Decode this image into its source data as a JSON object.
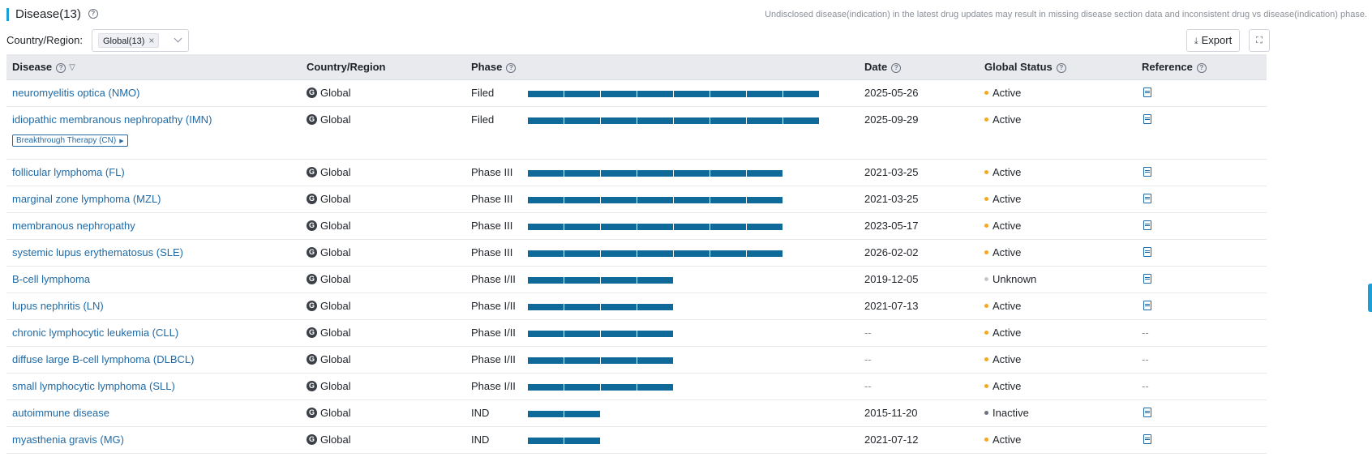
{
  "header": {
    "title": "Disease(13)",
    "notice": "Undisclosed disease(indication) in the latest drug updates may result in missing disease section data and inconsistent drug vs disease(indication) phase."
  },
  "filter": {
    "label": "Country/Region:",
    "selected_tag": "Global(13)",
    "tag_close": "×"
  },
  "toolbar": {
    "export_label": "Export"
  },
  "columns": {
    "disease": "Disease",
    "country": "Country/Region",
    "phase": "Phase",
    "date": "Date",
    "status": "Global Status",
    "reference": "Reference"
  },
  "colors": {
    "accent": "#1a9fd6",
    "link": "#1f6aa6",
    "bar": "#0f6a99",
    "active": "#f5a623",
    "unknown": "#c4c8ce",
    "inactive": "#6b7280"
  },
  "phase_scale": [
    "IND",
    "Phase I",
    "Phase I/II",
    "Phase II",
    "Phase II/III",
    "Phase III",
    "Filed",
    "Approved"
  ],
  "rows": [
    {
      "disease": "neuromyelitis optica (NMO)",
      "country": "Global",
      "phase": "Filed",
      "phase_level": 8,
      "date": "2025-05-26",
      "status": "Active",
      "status_color": "#f5a623",
      "reference": "doc-icon"
    },
    {
      "disease": "idiopathic membranous nephropathy (IMN)",
      "country": "Global",
      "phase": "Filed",
      "phase_level": 8,
      "date": "2025-09-29",
      "status": "Active",
      "status_color": "#f5a623",
      "reference": "doc-icon",
      "badge": "Breakthrough Therapy (CN)"
    },
    {
      "disease": "follicular lymphoma (FL)",
      "country": "Global",
      "phase": "Phase III",
      "phase_level": 7,
      "date": "2021-03-25",
      "status": "Active",
      "status_color": "#f5a623",
      "reference": "doc-icon"
    },
    {
      "disease": "marginal zone lymphoma (MZL)",
      "country": "Global",
      "phase": "Phase III",
      "phase_level": 7,
      "date": "2021-03-25",
      "status": "Active",
      "status_color": "#f5a623",
      "reference": "doc-icon"
    },
    {
      "disease": "membranous nephropathy",
      "country": "Global",
      "phase": "Phase III",
      "phase_level": 7,
      "date": "2023-05-17",
      "status": "Active",
      "status_color": "#f5a623",
      "reference": "doc-icon"
    },
    {
      "disease": "systemic lupus erythematosus (SLE)",
      "country": "Global",
      "phase": "Phase III",
      "phase_level": 7,
      "date": "2026-02-02",
      "status": "Active",
      "status_color": "#f5a623",
      "reference": "doc-icon"
    },
    {
      "disease": "B-cell lymphoma",
      "country": "Global",
      "phase": "Phase I/II",
      "phase_level": 4,
      "date": "2019-12-05",
      "status": "Unknown",
      "status_color": "#c4c8ce",
      "reference": "doc-icon"
    },
    {
      "disease": "lupus nephritis (LN)",
      "country": "Global",
      "phase": "Phase I/II",
      "phase_level": 4,
      "date": "2021-07-13",
      "status": "Active",
      "status_color": "#f5a623",
      "reference": "doc-icon"
    },
    {
      "disease": "chronic lymphocytic leukemia (CLL)",
      "country": "Global",
      "phase": "Phase I/II",
      "phase_level": 4,
      "date": "--",
      "status": "Active",
      "status_color": "#f5a623",
      "reference": "--"
    },
    {
      "disease": "diffuse large B-cell lymphoma (DLBCL)",
      "country": "Global",
      "phase": "Phase I/II",
      "phase_level": 4,
      "date": "--",
      "status": "Active",
      "status_color": "#f5a623",
      "reference": "--"
    },
    {
      "disease": "small lymphocytic lymphoma (SLL)",
      "country": "Global",
      "phase": "Phase I/II",
      "phase_level": 4,
      "date": "--",
      "status": "Active",
      "status_color": "#f5a623",
      "reference": "--"
    },
    {
      "disease": "autoimmune disease",
      "country": "Global",
      "phase": "IND",
      "phase_level": 2,
      "date": "2015-11-20",
      "status": "Inactive",
      "status_color": "#6b7280",
      "reference": "doc-icon"
    },
    {
      "disease": "myasthenia gravis (MG)",
      "country": "Global",
      "phase": "IND",
      "phase_level": 2,
      "date": "2021-07-12",
      "status": "Active",
      "status_color": "#f5a623",
      "reference": "doc-icon"
    }
  ]
}
